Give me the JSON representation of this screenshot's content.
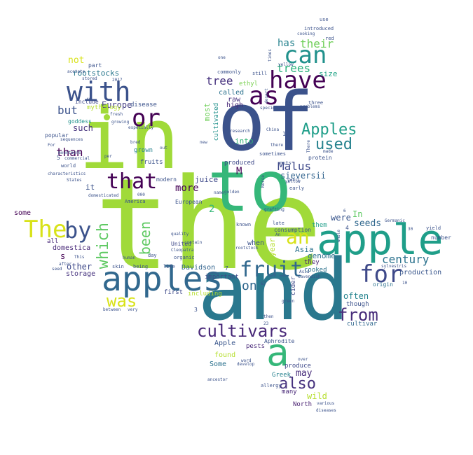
{
  "words": [
    {
      "text": "the",
      "color": "#a0da39"
    },
    {
      "text": "and",
      "color": "#2a788e"
    },
    {
      "text": "of",
      "color": "#3b528b"
    },
    {
      "text": "in",
      "color": "#a0da39"
    },
    {
      "text": "to",
      "color": "#35b779"
    },
    {
      "text": "apple",
      "color": "#1f9e89"
    },
    {
      "text": "apples",
      "color": "#31688e"
    },
    {
      "text": "a",
      "color": "#35b779"
    },
    {
      "text": "with",
      "color": "#3b528b"
    },
    {
      "text": "The",
      "color": "#d8e219"
    },
    {
      "text": "as",
      "color": "#440154"
    },
    {
      "text": "have",
      "color": "#440154"
    },
    {
      "text": "can",
      "color": "#21918c"
    },
    {
      "text": "or",
      "color": "#440154"
    },
    {
      "text": "that",
      "color": "#440154"
    },
    {
      "text": "by",
      "color": "#3b528b"
    },
    {
      "text": "an",
      "color": "#d8e219"
    },
    {
      "text": "fruit",
      "color": "#31688e"
    },
    {
      "text": "for",
      "color": "#3e4989"
    },
    {
      "text": "cultivars",
      "color": "#482878"
    },
    {
      "text": "Apples",
      "color": "#1f9e89"
    },
    {
      "text": "used",
      "color": "#26828e"
    },
    {
      "text": "from",
      "color": "#472c7a"
    },
    {
      "text": "was",
      "color": "#d8e219"
    },
    {
      "text": "which",
      "color": "#5ec962"
    },
    {
      "text": "been",
      "color": "#5ec962"
    },
    {
      "text": "also",
      "color": "#46327e"
    },
    {
      "text": "Malus",
      "color": "#3e4989"
    },
    {
      "text": "trees",
      "color": "#2db27d"
    },
    {
      "text": "their",
      "color": "#6ece58"
    },
    {
      "text": "has",
      "color": "#26828e"
    },
    {
      "text": "on",
      "color": "#31688e"
    },
    {
      "text": "century",
      "color": "#2c728e"
    },
    {
      "text": "tree",
      "color": "#46327e"
    },
    {
      "text": "but",
      "color": "#3b528b"
    },
    {
      "text": "than",
      "color": "#440154"
    },
    {
      "text": "more",
      "color": "#440154"
    },
    {
      "text": "rootstocks",
      "color": "#2a788e"
    },
    {
      "text": "not",
      "color": "#d8e219"
    },
    {
      "text": "Europe",
      "color": "#433e85"
    },
    {
      "text": "such",
      "color": "#46327e"
    },
    {
      "text": "M",
      "color": "#440154"
    },
    {
      "text": "sieversii",
      "color": "#32648e"
    },
    {
      "text": "seeds",
      "color": "#31688e"
    },
    {
      "text": "were",
      "color": "#39568c"
    },
    {
      "text": "often",
      "color": "#25848e"
    },
    {
      "text": "may",
      "color": "#472c7a"
    },
    {
      "text": "wild",
      "color": "#b5de2b"
    },
    {
      "text": "genome",
      "color": "#2c728e"
    },
    {
      "text": "production",
      "color": "#39568c"
    },
    {
      "text": "other",
      "color": "#3e4989"
    },
    {
      "text": "s",
      "color": "#440154"
    },
    {
      "text": "2",
      "color": "#35b779"
    },
    {
      "text": "it",
      "color": "#3b528b"
    },
    {
      "text": "most",
      "color": "#6ece58"
    },
    {
      "text": "cultivated",
      "color": "#21918c"
    },
    {
      "text": "year",
      "color": "#b5de2b"
    },
    {
      "text": "called",
      "color": "#2c728e"
    },
    {
      "text": "raw",
      "color": "#46327e"
    },
    {
      "text": "high",
      "color": "#482878"
    },
    {
      "text": "ethyl",
      "color": "#7ad151"
    },
    {
      "text": "size",
      "color": "#20a486"
    },
    {
      "text": "into",
      "color": "#35b779"
    },
    {
      "text": "produced",
      "color": "#3e4989"
    },
    {
      "text": "juice",
      "color": "#3e4989"
    },
    {
      "text": "In",
      "color": "#5ec962"
    },
    {
      "text": "them",
      "color": "#1f9e89"
    },
    {
      "text": "when",
      "color": "#3b528b"
    },
    {
      "text": "they",
      "color": "#481f70"
    },
    {
      "text": "Asia",
      "color": "#2c728e"
    },
    {
      "text": "cooked",
      "color": "#2c728e"
    },
    {
      "text": "storage",
      "color": "#46327e"
    },
    {
      "text": "domestica",
      "color": "#482878"
    },
    {
      "text": "some",
      "color": "#440154"
    },
    {
      "text": "all",
      "color": "#482878"
    },
    {
      "text": "fruits",
      "color": "#3b528b"
    },
    {
      "text": "grown",
      "color": "#26828e"
    },
    {
      "text": "Apple",
      "color": "#39568c"
    },
    {
      "text": "pests",
      "color": "#482878"
    },
    {
      "text": "found",
      "color": "#b5de2b"
    },
    {
      "text": "Some",
      "color": "#2c728e"
    },
    {
      "text": "Davidson",
      "color": "#32648e"
    },
    {
      "text": "including",
      "color": "#b5de2b"
    },
    {
      "text": "important",
      "color": "#3e4989"
    },
    {
      "text": "first",
      "color": "#3e4989"
    },
    {
      "text": "North",
      "color": "#481f70"
    },
    {
      "text": "many",
      "color": "#482878"
    },
    {
      "text": "Greek",
      "color": "#26828e"
    },
    {
      "text": "though",
      "color": "#3b528b"
    },
    {
      "text": "cultivar",
      "color": "#31688e"
    },
    {
      "text": "cider",
      "color": "#3e4989"
    },
    {
      "text": "produce",
      "color": "#3e4989"
    },
    {
      "text": "Aphrodite",
      "color": "#3b528b"
    },
    {
      "text": "mythology",
      "color": "#b5de2b"
    },
    {
      "text": "goddess",
      "color": "#21918c"
    },
    {
      "text": "disease",
      "color": "#3b528b"
    },
    {
      "text": "include",
      "color": "#3e4989"
    },
    {
      "text": "part",
      "color": "#3b528b"
    },
    {
      "text": "popular",
      "color": "#3b528b"
    },
    {
      "text": "modern",
      "color": "#3b528b"
    },
    {
      "text": "European",
      "color": "#3b528b"
    },
    {
      "text": "America",
      "color": "#3b528b"
    },
    {
      "text": "United",
      "color": "#3e4989"
    },
    {
      "text": "known",
      "color": "#3b528b"
    },
    {
      "text": "late",
      "color": "#3b528b"
    },
    {
      "text": "consumption",
      "color": "#3b528b"
    },
    {
      "text": "protein",
      "color": "#3b528b"
    },
    {
      "text": "nuts",
      "color": "#3b528b"
    },
    {
      "text": "early",
      "color": "#3b528b"
    },
    {
      "text": "number",
      "color": "#3b528b"
    },
    {
      "text": "yield",
      "color": "#3b528b"
    },
    {
      "text": "origin",
      "color": "#2c728e"
    },
    {
      "text": "use",
      "color": "#3b528b"
    },
    {
      "text": "introduced",
      "color": "#3b528b"
    },
    {
      "text": "red",
      "color": "#3b528b"
    },
    {
      "text": "commonly",
      "color": "#3b528b"
    },
    {
      "text": "still",
      "color": "#3b528b"
    },
    {
      "text": "three",
      "color": "#3b528b"
    },
    {
      "text": "problems",
      "color": "#3b528b"
    },
    {
      "text": "new",
      "color": "#3b528b"
    },
    {
      "text": "there",
      "color": "#3b528b"
    },
    {
      "text": "sometimes",
      "color": "#3b528b"
    },
    {
      "text": "name",
      "color": "#3b528b"
    },
    {
      "text": "quality",
      "color": "#3b528b"
    },
    {
      "text": "day",
      "color": "#3b528b"
    },
    {
      "text": "skin",
      "color": "#3b528b"
    },
    {
      "text": "being",
      "color": "#3b528b"
    },
    {
      "text": "life",
      "color": "#3b528b"
    },
    {
      "text": "organic",
      "color": "#3b528b"
    },
    {
      "text": "characteristics",
      "color": "#3b528b"
    },
    {
      "text": "States",
      "color": "#3b528b"
    },
    {
      "text": "world",
      "color": "#3b528b"
    },
    {
      "text": "commercial",
      "color": "#3b528b"
    },
    {
      "text": "fresh",
      "color": "#3b528b"
    },
    {
      "text": "especially",
      "color": "#3b528b"
    },
    {
      "text": "stored",
      "color": "#3b528b"
    },
    {
      "text": "acetate",
      "color": "#3b528b"
    },
    {
      "text": "after",
      "color": "#3b528b"
    },
    {
      "text": "seed",
      "color": "#3b528b"
    },
    {
      "text": "very",
      "color": "#3b528b"
    },
    {
      "text": "between",
      "color": "#3b528b"
    },
    {
      "text": "domesticated",
      "color": "#3b528b"
    },
    {
      "text": "human",
      "color": "#3b528b"
    },
    {
      "text": "ancestor",
      "color": "#3b528b"
    },
    {
      "text": "word",
      "color": "#3b528b"
    },
    {
      "text": "allergy",
      "color": "#3b528b"
    },
    {
      "text": "various",
      "color": "#3b528b"
    },
    {
      "text": "diseases",
      "color": "#3b528b"
    },
    {
      "text": "rootstock",
      "color": "#3b528b"
    },
    {
      "text": "Asia",
      "color": "#3b528b"
    },
    {
      "text": "Germanic",
      "color": "#3b528b"
    },
    {
      "text": "sylvestris",
      "color": "#3b528b"
    },
    {
      "text": "whole",
      "color": "#3b528b"
    },
    {
      "text": "sequences",
      "color": "#3b528b"
    },
    {
      "text": "mountains",
      "color": "#3b528b"
    },
    {
      "text": "growing",
      "color": "#3b528b"
    },
    {
      "text": "For",
      "color": "#3b528b"
    },
    {
      "text": "This",
      "color": "#3b528b"
    },
    {
      "text": "one",
      "color": "#3b528b"
    },
    {
      "text": "China",
      "color": "#3b528b"
    },
    {
      "text": "cooking",
      "color": "#3b528b"
    },
    {
      "text": "times",
      "color": "#3b528b"
    },
    {
      "text": "over",
      "color": "#3b528b"
    },
    {
      "text": "then",
      "color": "#3b528b"
    },
    {
      "text": "green",
      "color": "#3b528b"
    },
    {
      "text": "develop",
      "color": "#3b528b"
    },
    {
      "text": "contain",
      "color": "#3b528b"
    },
    {
      "text": "golden",
      "color": "#3b528b"
    },
    {
      "text": "grafting",
      "color": "#3b528b"
    },
    {
      "text": "Norse",
      "color": "#3b528b"
    },
    {
      "text": "years",
      "color": "#3b528b"
    },
    {
      "text": "research",
      "color": "#3b528b"
    },
    {
      "text": "species",
      "color": "#3b528b"
    },
    {
      "text": "desert",
      "color": "#3b528b"
    },
    {
      "text": "yellow",
      "color": "#3b528b"
    },
    {
      "text": "bred",
      "color": "#3b528b"
    },
    {
      "text": "out",
      "color": "#3b528b"
    },
    {
      "text": "per",
      "color": "#3b528b"
    },
    {
      "text": "1",
      "color": "#3b528b"
    },
    {
      "text": "3",
      "color": "#3b528b"
    },
    {
      "text": "4",
      "color": "#3b528b"
    },
    {
      "text": "5",
      "color": "#3b528b"
    },
    {
      "text": "6",
      "color": "#3b528b"
    },
    {
      "text": "7",
      "color": "#3b528b"
    },
    {
      "text": "10",
      "color": "#3b528b"
    },
    {
      "text": "23",
      "color": "#3b528b"
    },
    {
      "text": "30",
      "color": "#3b528b"
    },
    {
      "text": "40",
      "color": "#3b528b"
    },
    {
      "text": "63",
      "color": "#3b528b"
    },
    {
      "text": "2017",
      "color": "#3b528b"
    },
    {
      "text": "000",
      "color": "#3b528b"
    },
    {
      "text": "There",
      "color": "#3b528b"
    },
    {
      "text": "made",
      "color": "#3b528b"
    },
    {
      "text": "An",
      "color": "#3b528b"
    },
    {
      "text": "Cleopatra",
      "color": "#3b528b"
    },
    {
      "text": "Cavendish",
      "color": "#3b528b"
    },
    {
      "text": "yellow",
      "color": "#3b528b"
    }
  ]
}
